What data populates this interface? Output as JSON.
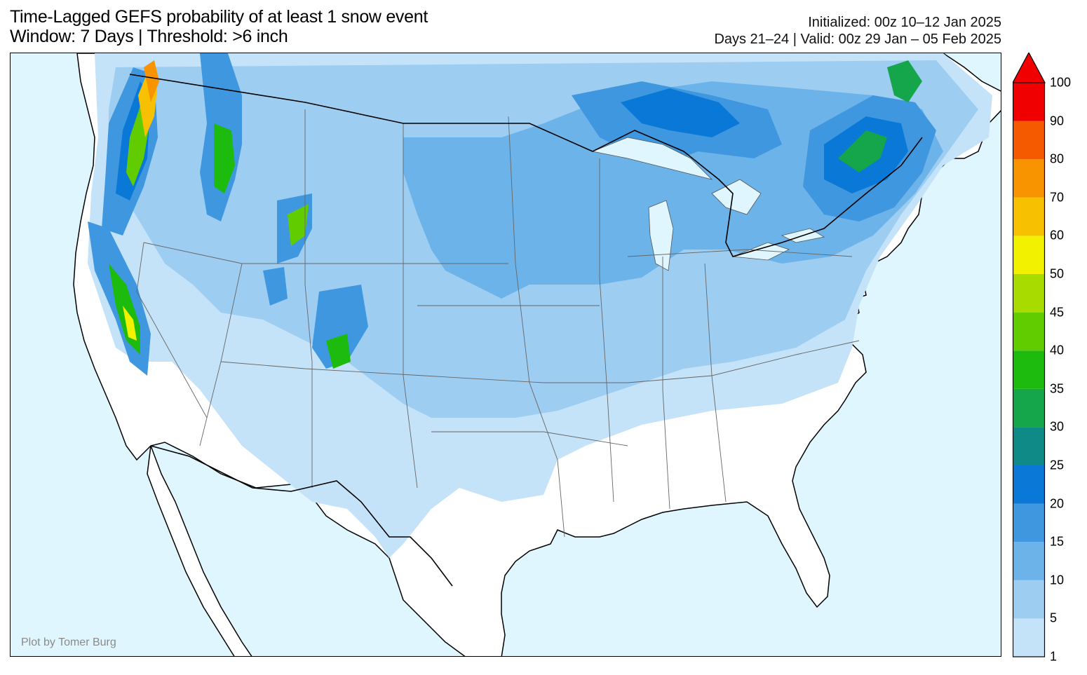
{
  "title": {
    "line1": "Time-Lagged GEFS probability of at least 1 snow event",
    "line2": "Window: 7 Days | Threshold: >6 inch"
  },
  "info": {
    "initialized": "Initialized: 00z 10–12 Jan 2025",
    "valid": "Days 21–24 | Valid: 00z 29 Jan – 05 Feb 2025"
  },
  "credit": "Plot by Tomer Burg",
  "colors": {
    "ocean": "#e0f6ff",
    "land": "#ffffff"
  },
  "colorbar": {
    "labels": [
      "1",
      "5",
      "10",
      "15",
      "20",
      "25",
      "30",
      "35",
      "40",
      "45",
      "50",
      "60",
      "70",
      "80",
      "90",
      "100"
    ],
    "colors": [
      "#c4e3f9",
      "#9ecdf2",
      "#6cb3ea",
      "#3f97e0",
      "#0a78d6",
      "#0f8a87",
      "#15a64b",
      "#1cbb0e",
      "#61cc00",
      "#a8dc00",
      "#f1f100",
      "#f7c000",
      "#f79400",
      "#f65a00",
      "#f00000"
    ],
    "extend_color": "#f00000"
  }
}
